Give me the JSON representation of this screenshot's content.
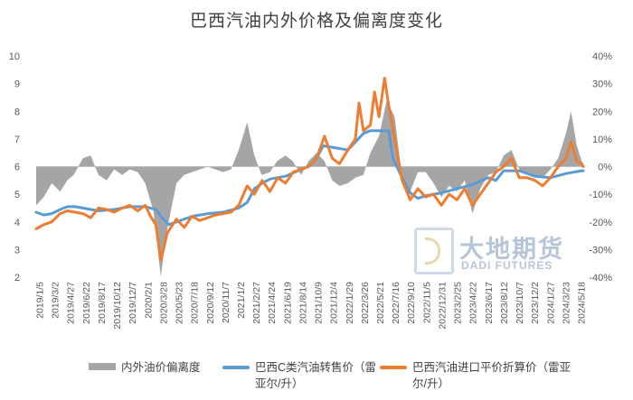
{
  "chart_data": {
    "type": "line",
    "title": "巴西汽油内外价格及偏离度变化",
    "y_left": {
      "lim": [
        2,
        10
      ],
      "ticks": [
        "2",
        "3",
        "4",
        "5",
        "6",
        "7",
        "8",
        "9",
        "10"
      ]
    },
    "y_right": {
      "lim": [
        -40,
        40
      ],
      "ticks": [
        "-40%",
        "-30%",
        "-20%",
        "-10%",
        "0%",
        "10%",
        "20%",
        "30%",
        "40%"
      ]
    },
    "x_start": "2019-01-05",
    "x_end": "2024-05-24",
    "x_tick_labels": [
      "2019/1/5",
      "2019/3/2",
      "2019/4/27",
      "2019/6/22",
      "2019/8/17",
      "2019/10/12",
      "2019/12/7",
      "2020/2/1",
      "2020/3/28",
      "2020/5/23",
      "2020/7/18",
      "2020/9/12",
      "2020/11/7",
      "2021/1/2",
      "2021/2/27",
      "2021/4/24",
      "2021/6/19",
      "2021/8/14",
      "2021/10/9",
      "2021/12/4",
      "2022/1/29",
      "2022/3/26",
      "2022/5/21",
      "2022/7/16",
      "2022/9/10",
      "2022/11/5",
      "2022/12/31",
      "2023/2/25",
      "2023/4/22",
      "2023/6/17",
      "2023/8/12",
      "2023/10/7",
      "2023/12/2",
      "2024/1/27",
      "2024/3/23",
      "2024/5/18"
    ],
    "series": [
      {
        "name": "内外油价偏离度",
        "axis": "right",
        "type": "area",
        "color": "#a5a5a5",
        "points": [
          [
            "2019-01-05",
            -14
          ],
          [
            "2019-02-01",
            -11
          ],
          [
            "2019-03-02",
            -6
          ],
          [
            "2019-04-01",
            -9
          ],
          [
            "2019-04-27",
            -5
          ],
          [
            "2019-05-20",
            -3
          ],
          [
            "2019-06-22",
            3
          ],
          [
            "2019-07-20",
            4
          ],
          [
            "2019-08-17",
            -3
          ],
          [
            "2019-09-15",
            -5
          ],
          [
            "2019-10-12",
            -1
          ],
          [
            "2019-11-10",
            -3
          ],
          [
            "2019-12-07",
            -1
          ],
          [
            "2020-01-05",
            -2
          ],
          [
            "2020-02-01",
            -6
          ],
          [
            "2020-03-01",
            -16
          ],
          [
            "2020-03-28",
            -40
          ],
          [
            "2020-04-15",
            -25
          ],
          [
            "2020-05-23",
            -6
          ],
          [
            "2020-06-20",
            -3
          ],
          [
            "2020-07-18",
            -2
          ],
          [
            "2020-08-15",
            -1
          ],
          [
            "2020-09-12",
            0
          ],
          [
            "2020-10-10",
            -1
          ],
          [
            "2020-11-07",
            -2
          ],
          [
            "2020-12-05",
            -1
          ],
          [
            "2021-01-02",
            6
          ],
          [
            "2021-02-01",
            16
          ],
          [
            "2021-02-27",
            4
          ],
          [
            "2021-03-25",
            -3
          ],
          [
            "2021-04-24",
            -2
          ],
          [
            "2021-05-20",
            2
          ],
          [
            "2021-06-19",
            4
          ],
          [
            "2021-07-15",
            2
          ],
          [
            "2021-08-14",
            -3
          ],
          [
            "2021-09-10",
            2
          ],
          [
            "2021-10-09",
            5
          ],
          [
            "2021-11-06",
            2
          ],
          [
            "2021-12-04",
            -5
          ],
          [
            "2021-12-30",
            -7
          ],
          [
            "2022-01-29",
            -6
          ],
          [
            "2022-02-25",
            -4
          ],
          [
            "2022-03-26",
            -3
          ],
          [
            "2022-04-20",
            5
          ],
          [
            "2022-05-21",
            11
          ],
          [
            "2022-06-18",
            24
          ],
          [
            "2022-07-16",
            18
          ],
          [
            "2022-08-12",
            -4
          ],
          [
            "2022-09-10",
            -9
          ],
          [
            "2022-10-08",
            -2
          ],
          [
            "2022-11-05",
            -2
          ],
          [
            "2022-12-03",
            -6
          ],
          [
            "2022-12-31",
            -11
          ],
          [
            "2023-01-28",
            -7
          ],
          [
            "2023-02-25",
            -9
          ],
          [
            "2023-03-25",
            -5
          ],
          [
            "2023-04-22",
            -17
          ],
          [
            "2023-05-20",
            -8
          ],
          [
            "2023-06-17",
            -3
          ],
          [
            "2023-07-15",
            -2
          ],
          [
            "2023-08-12",
            4
          ],
          [
            "2023-09-09",
            6
          ],
          [
            "2023-10-07",
            -1
          ],
          [
            "2023-11-04",
            -2
          ],
          [
            "2023-12-02",
            -3
          ],
          [
            "2023-12-30",
            -4
          ],
          [
            "2024-01-27",
            -1
          ],
          [
            "2024-02-24",
            3
          ],
          [
            "2024-03-23",
            12
          ],
          [
            "2024-04-10",
            20
          ],
          [
            "2024-04-30",
            8
          ],
          [
            "2024-05-18",
            2
          ],
          [
            "2024-05-24",
            1
          ]
        ]
      },
      {
        "name": "巴西C类汽油转售价（雷亚尔/升）",
        "axis": "left",
        "type": "line",
        "color": "#5b9bd5",
        "points": [
          [
            "2019-01-05",
            4.35
          ],
          [
            "2019-02-01",
            4.25
          ],
          [
            "2019-03-02",
            4.3
          ],
          [
            "2019-04-01",
            4.45
          ],
          [
            "2019-04-27",
            4.55
          ],
          [
            "2019-05-25",
            4.55
          ],
          [
            "2019-06-22",
            4.5
          ],
          [
            "2019-08-17",
            4.4
          ],
          [
            "2019-10-12",
            4.45
          ],
          [
            "2019-12-07",
            4.55
          ],
          [
            "2020-02-01",
            4.55
          ],
          [
            "2020-03-10",
            4.45
          ],
          [
            "2020-04-01",
            4.15
          ],
          [
            "2020-04-25",
            3.9
          ],
          [
            "2020-05-23",
            4.0
          ],
          [
            "2020-07-18",
            4.2
          ],
          [
            "2020-09-12",
            4.3
          ],
          [
            "2020-11-07",
            4.35
          ],
          [
            "2021-01-02",
            4.5
          ],
          [
            "2021-02-01",
            4.7
          ],
          [
            "2021-02-27",
            5.2
          ],
          [
            "2021-03-27",
            5.4
          ],
          [
            "2021-04-24",
            5.55
          ],
          [
            "2021-06-19",
            5.65
          ],
          [
            "2021-08-14",
            5.9
          ],
          [
            "2021-09-10",
            6.0
          ],
          [
            "2021-10-09",
            6.3
          ],
          [
            "2021-11-01",
            6.75
          ],
          [
            "2021-12-04",
            6.7
          ],
          [
            "2022-01-29",
            6.6
          ],
          [
            "2022-03-26",
            7.2
          ],
          [
            "2022-04-20",
            7.3
          ],
          [
            "2022-05-21",
            7.3
          ],
          [
            "2022-06-25",
            7.3
          ],
          [
            "2022-07-10",
            6.3
          ],
          [
            "2022-08-12",
            5.6
          ],
          [
            "2022-09-10",
            5.05
          ],
          [
            "2022-10-08",
            4.85
          ],
          [
            "2022-11-05",
            4.95
          ],
          [
            "2022-12-31",
            5.05
          ],
          [
            "2023-02-25",
            5.2
          ],
          [
            "2023-04-22",
            5.35
          ],
          [
            "2023-06-17",
            5.6
          ],
          [
            "2023-07-15",
            5.5
          ],
          [
            "2023-08-12",
            5.85
          ],
          [
            "2023-10-07",
            5.85
          ],
          [
            "2023-12-02",
            5.65
          ],
          [
            "2024-01-27",
            5.6
          ],
          [
            "2024-03-23",
            5.75
          ],
          [
            "2024-05-18",
            5.85
          ],
          [
            "2024-05-24",
            5.85
          ]
        ]
      },
      {
        "name": "巴西汽油进口平价折算价（雷亚尔/升）",
        "axis": "left",
        "type": "line",
        "color": "#ed7d31",
        "points": [
          [
            "2019-01-05",
            3.75
          ],
          [
            "2019-02-01",
            3.9
          ],
          [
            "2019-03-02",
            4.0
          ],
          [
            "2019-04-01",
            4.3
          ],
          [
            "2019-04-27",
            4.4
          ],
          [
            "2019-05-25",
            4.35
          ],
          [
            "2019-06-22",
            4.3
          ],
          [
            "2019-07-20",
            4.15
          ],
          [
            "2019-08-17",
            4.5
          ],
          [
            "2019-09-15",
            4.45
          ],
          [
            "2019-10-12",
            4.35
          ],
          [
            "2019-11-10",
            4.5
          ],
          [
            "2019-12-07",
            4.6
          ],
          [
            "2020-01-05",
            4.4
          ],
          [
            "2020-02-01",
            4.6
          ],
          [
            "2020-02-20",
            4.2
          ],
          [
            "2020-03-10",
            3.9
          ],
          [
            "2020-03-28",
            2.6
          ],
          [
            "2020-04-20",
            3.6
          ],
          [
            "2020-05-23",
            4.1
          ],
          [
            "2020-06-20",
            3.8
          ],
          [
            "2020-07-18",
            4.2
          ],
          [
            "2020-08-15",
            4.05
          ],
          [
            "2020-09-12",
            4.15
          ],
          [
            "2020-10-10",
            4.25
          ],
          [
            "2020-11-07",
            4.3
          ],
          [
            "2020-12-05",
            4.35
          ],
          [
            "2021-01-02",
            4.6
          ],
          [
            "2021-02-01",
            5.3
          ],
          [
            "2021-02-27",
            5.0
          ],
          [
            "2021-03-27",
            5.5
          ],
          [
            "2021-04-24",
            5.1
          ],
          [
            "2021-05-22",
            5.6
          ],
          [
            "2021-06-19",
            5.4
          ],
          [
            "2021-07-17",
            5.8
          ],
          [
            "2021-08-14",
            5.9
          ],
          [
            "2021-09-10",
            6.0
          ],
          [
            "2021-10-09",
            6.3
          ],
          [
            "2021-11-06",
            7.1
          ],
          [
            "2021-12-04",
            6.3
          ],
          [
            "2021-12-30",
            6.1
          ],
          [
            "2022-01-29",
            6.6
          ],
          [
            "2022-02-25",
            7.0
          ],
          [
            "2022-03-10",
            8.3
          ],
          [
            "2022-03-26",
            7.3
          ],
          [
            "2022-04-20",
            7.5
          ],
          [
            "2022-05-05",
            8.7
          ],
          [
            "2022-05-21",
            7.8
          ],
          [
            "2022-06-10",
            9.2
          ],
          [
            "2022-06-25",
            8.2
          ],
          [
            "2022-07-16",
            7.0
          ],
          [
            "2022-08-12",
            5.5
          ],
          [
            "2022-09-10",
            4.8
          ],
          [
            "2022-10-08",
            5.2
          ],
          [
            "2022-11-05",
            4.9
          ],
          [
            "2022-12-03",
            5.0
          ],
          [
            "2022-12-31",
            4.6
          ],
          [
            "2023-01-28",
            5.0
          ],
          [
            "2023-02-25",
            4.8
          ],
          [
            "2023-03-25",
            5.2
          ],
          [
            "2023-04-22",
            4.6
          ],
          [
            "2023-05-20",
            5.0
          ],
          [
            "2023-06-17",
            5.4
          ],
          [
            "2023-07-15",
            5.8
          ],
          [
            "2023-08-12",
            6.0
          ],
          [
            "2023-09-09",
            6.3
          ],
          [
            "2023-10-07",
            5.6
          ],
          [
            "2023-11-04",
            5.6
          ],
          [
            "2023-12-02",
            5.5
          ],
          [
            "2023-12-30",
            5.3
          ],
          [
            "2024-01-27",
            5.6
          ],
          [
            "2024-02-24",
            6.0
          ],
          [
            "2024-03-23",
            6.3
          ],
          [
            "2024-04-10",
            6.9
          ],
          [
            "2024-04-30",
            6.2
          ],
          [
            "2024-05-18",
            6.1
          ],
          [
            "2024-05-24",
            6.0
          ]
        ]
      }
    ],
    "legend_position": "bottom",
    "grid": false
  },
  "watermark": {
    "cn": "大地期货",
    "en": "DADI FUTURES"
  }
}
